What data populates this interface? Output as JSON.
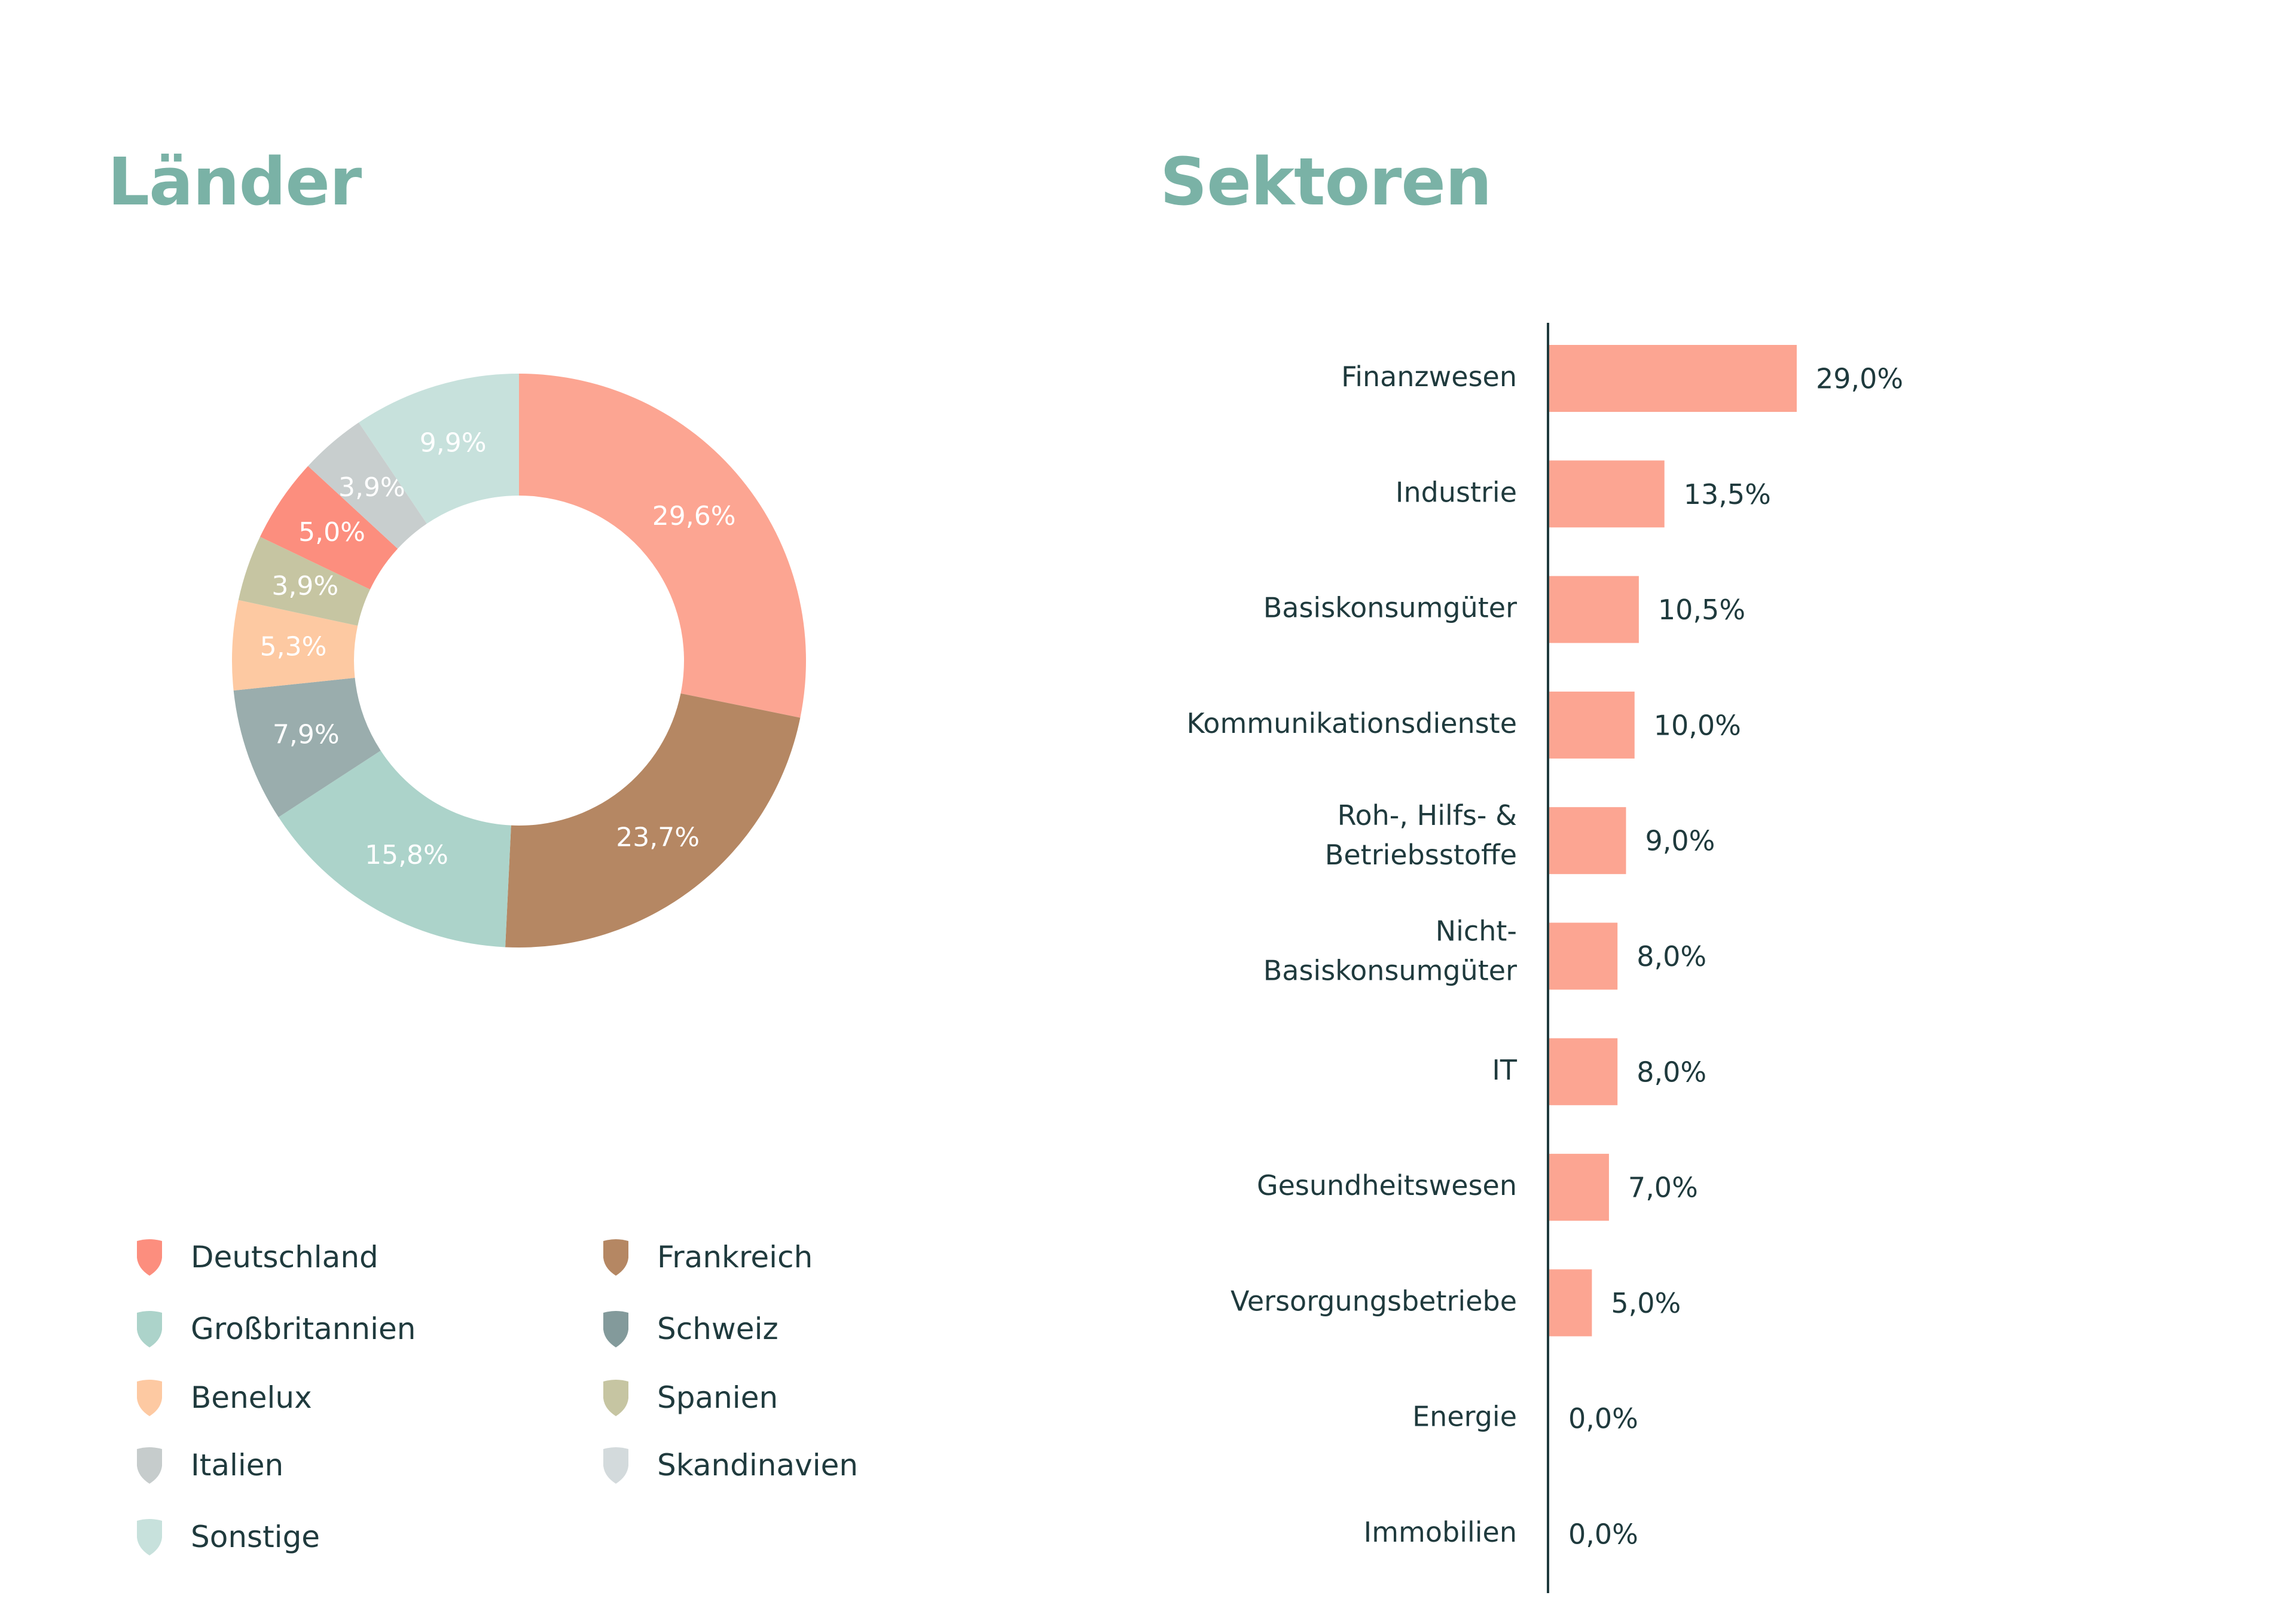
{
  "chart_data": [
    {
      "type": "pie",
      "title": "Länder",
      "categories": [
        "Deutschland",
        "Frankreich",
        "Großbritannien",
        "Schweiz",
        "Benelux",
        "Spanien",
        "Italien",
        "Skandinavien",
        "Sonstige"
      ],
      "series": [
        {
          "values": [
            29.6,
            23.7,
            15.8,
            7.9,
            5.3,
            3.9,
            5.0,
            3.9,
            9.9
          ]
        }
      ],
      "value_labels": [
        "29,6%",
        "23,7%",
        "15,8%",
        "7,9%",
        "5,3%",
        "3,9%",
        "5,0%",
        "3,9%",
        "9,9%"
      ],
      "slice_colors": [
        "#fca592",
        "#b58763",
        "#acd3ca",
        "#9aadad",
        "#fdc9a2",
        "#c6c5a2",
        "#fc8e7e",
        "#c8cece",
        "#c7e1dc"
      ],
      "legend": {
        "placement": "bottom",
        "items": [
          {
            "label": "Deutschland",
            "color": "#fc8e7e"
          },
          {
            "label": "Frankreich",
            "color": "#b58763"
          },
          {
            "label": "Großbritannien",
            "color": "#acd3ca"
          },
          {
            "label": "Schweiz",
            "color": "#839a9b"
          },
          {
            "label": "Benelux",
            "color": "#fdc9a2"
          },
          {
            "label": "Spanien",
            "color": "#c6c5a2"
          },
          {
            "label": "Italien",
            "color": "#c6cccc"
          },
          {
            "label": "Skandinavien",
            "color": "#d3dadc"
          },
          {
            "label": "Sonstige",
            "color": "#c7e1dc"
          }
        ]
      },
      "donut": true
    },
    {
      "type": "bar",
      "orientation": "horizontal",
      "title": "Sektoren",
      "categories": [
        "Finanzwesen",
        "Industrie",
        "Basiskonsumgüter",
        "Kommunikationsdienste",
        "Roh-, Hilfs- & Betriebsstoffe",
        "Nicht-Basiskonsumgüter",
        "IT",
        "Gesundheitswesen",
        "Versorgungsbetriebe",
        "Energie",
        "Immobilien"
      ],
      "category_lines": [
        [
          "Finanzwesen"
        ],
        [
          "Industrie"
        ],
        [
          "Basiskonsumgüter"
        ],
        [
          "Kommunikationsdienste"
        ],
        [
          "Roh-, Hilfs- &",
          "Betriebsstoffe"
        ],
        [
          "Nicht-",
          "Basiskonsumgüter"
        ],
        [
          "IT"
        ],
        [
          "Gesundheitswesen"
        ],
        [
          "Versorgungsbetriebe"
        ],
        [
          "Energie"
        ],
        [
          "Immobilien"
        ]
      ],
      "values": [
        29.0,
        13.5,
        10.5,
        10.0,
        9.0,
        8.0,
        8.0,
        7.0,
        5.0,
        0.0,
        0.0
      ],
      "value_labels": [
        "29,0%",
        "13,5%",
        "10,5%",
        "10,0%",
        "9,0%",
        "8,0%",
        "8,0%",
        "7,0%",
        "5,0%",
        "0,0%",
        "0,0%"
      ],
      "bar_color": "#fca592",
      "xlim": [
        0,
        29
      ],
      "grid": false
    }
  ]
}
